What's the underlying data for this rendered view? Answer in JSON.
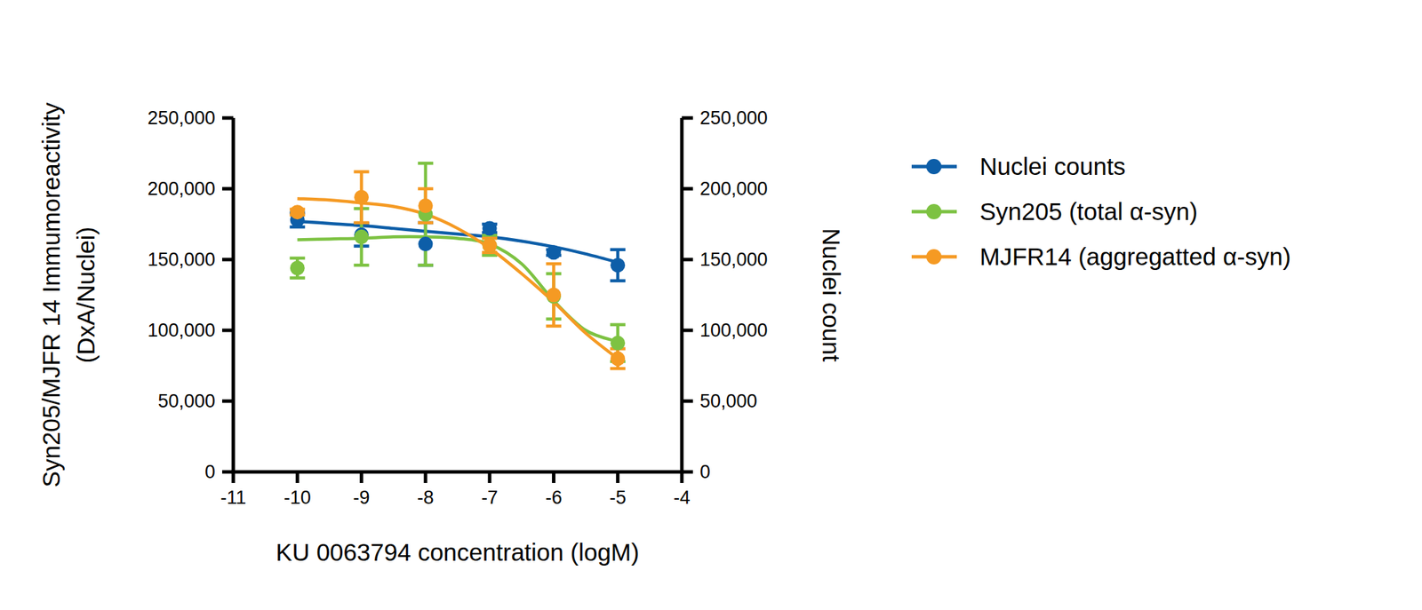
{
  "chart_data": {
    "type": "line",
    "x_label": "KU 0063794 concentration (logM)",
    "y_label": [
      "Syn205/MJFR 14 Immumoreactivity",
      "(DxA/Nuclei)"
    ],
    "y2_label": "Nuclei count",
    "x": [
      -10,
      -9,
      -8,
      -7,
      -6,
      -5
    ],
    "fit_x": [
      -10,
      -9.5,
      -9,
      -8.5,
      -8,
      -7.5,
      -7,
      -6.5,
      -6,
      -5.5,
      -5
    ],
    "xlim": [
      -11,
      -4
    ],
    "xticks": [
      -11,
      -10,
      -9,
      -8,
      -7,
      -6,
      -5,
      -4
    ],
    "ylim": [
      0,
      250000
    ],
    "yticks": [
      0,
      {
        "value": 50000,
        "label": "50,000"
      },
      {
        "value": 100000,
        "label": "100,000"
      },
      {
        "value": 150000,
        "label": "150,000"
      },
      {
        "value": 200000,
        "label": "200,000"
      },
      {
        "value": 250000,
        "label": "250,000"
      }
    ],
    "y2lim": [
      0,
      250000
    ],
    "y2ticks": [
      0,
      {
        "value": 50000,
        "label": "50,000"
      },
      {
        "value": 100000,
        "label": "100,000"
      },
      {
        "value": 150000,
        "label": "150,000"
      },
      {
        "value": 200000,
        "label": "200,000"
      },
      {
        "value": 250000,
        "label": "250,000"
      }
    ],
    "legend": "right",
    "marker": "circle",
    "grid": false,
    "series": [
      {
        "name": "Nuclei counts",
        "color": "#0d5ea8",
        "axis": "y2",
        "values": [
          178000,
          167500,
          161000,
          172000,
          155000,
          146000
        ],
        "errors": [
          5000,
          8000,
          15000,
          3000,
          2000,
          11000
        ],
        "fit": [
          177000,
          175500,
          174000,
          172000,
          170000,
          168000,
          166000,
          163000,
          159000,
          154000,
          148000
        ]
      },
      {
        "name": "Syn205 (total α-syn)",
        "color": "#7dc242",
        "values": [
          144000,
          166000,
          182000,
          160000,
          124000,
          91000
        ],
        "errors": [
          7000,
          20000,
          36000,
          7000,
          16000,
          13000
        ],
        "fit": [
          164000,
          164500,
          165000,
          166000,
          166000,
          165000,
          161000,
          147000,
          121000,
          100000,
          92000
        ]
      },
      {
        "name": "MJFR14 (aggregatted α-syn)",
        "color": "#f59a23",
        "values": [
          183500,
          194000,
          188000,
          160000,
          125000,
          80000
        ],
        "errors": [
          2000,
          18000,
          12000,
          5000,
          22000,
          7000
        ],
        "fit": [
          193000,
          192000,
          190000,
          187500,
          182000,
          172000,
          158000,
          140000,
          120000,
          98000,
          80000
        ]
      }
    ]
  }
}
